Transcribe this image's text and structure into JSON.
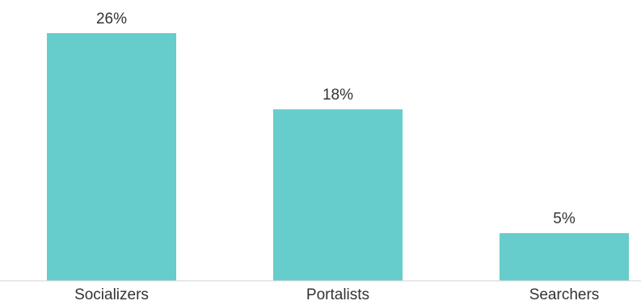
{
  "chart_data": {
    "type": "bar",
    "title": "",
    "xlabel": "",
    "ylabel": "",
    "categories": [
      "Socializers",
      "Portalists",
      "Searchers"
    ],
    "values": [
      26,
      18,
      5
    ],
    "data_labels": [
      "26%",
      "18%",
      "5%"
    ],
    "ylim": [
      0,
      26
    ],
    "grid": false,
    "legend": "none",
    "bar_color": "#66CCCC",
    "axis_color": "#D0D0D0",
    "text_color": "#333333"
  }
}
